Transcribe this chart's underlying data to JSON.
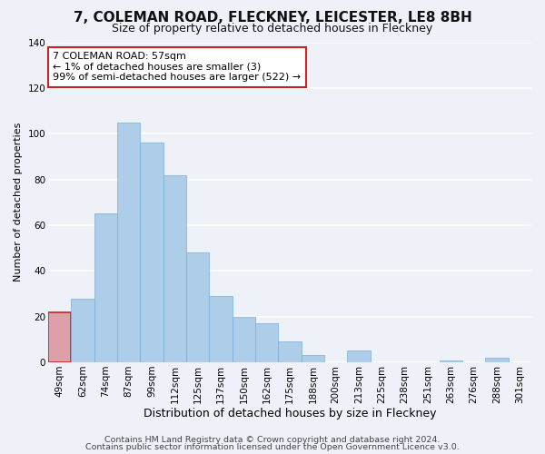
{
  "title": "7, COLEMAN ROAD, FLECKNEY, LEICESTER, LE8 8BH",
  "subtitle": "Size of property relative to detached houses in Fleckney",
  "xlabel": "Distribution of detached houses by size in Fleckney",
  "ylabel": "Number of detached properties",
  "bar_labels": [
    "49sqm",
    "62sqm",
    "74sqm",
    "87sqm",
    "99sqm",
    "112sqm",
    "125sqm",
    "137sqm",
    "150sqm",
    "162sqm",
    "175sqm",
    "188sqm",
    "200sqm",
    "213sqm",
    "225sqm",
    "238sqm",
    "251sqm",
    "263sqm",
    "276sqm",
    "288sqm",
    "301sqm"
  ],
  "bar_values": [
    22,
    28,
    65,
    105,
    96,
    82,
    48,
    29,
    20,
    17,
    9,
    3,
    0,
    5,
    0,
    0,
    0,
    1,
    0,
    2,
    0
  ],
  "highlight_index": 0,
  "bar_color": "#aecde8",
  "bar_edge_color": "#7aadd4",
  "highlight_color": "#dda0a8",
  "highlight_edge_color": "#cc2222",
  "ylim": [
    0,
    140
  ],
  "yticks": [
    0,
    20,
    40,
    60,
    80,
    100,
    120,
    140
  ],
  "annotation_line1": "7 COLEMAN ROAD: 57sqm",
  "annotation_line2": "← 1% of detached houses are smaller (3)",
  "annotation_line3": "99% of semi-detached houses are larger (522) →",
  "footer_line1": "Contains HM Land Registry data © Crown copyright and database right 2024.",
  "footer_line2": "Contains public sector information licensed under the Open Government Licence v3.0.",
  "background_color": "#eef2f8",
  "grid_color": "#ffffff",
  "title_fontsize": 11,
  "subtitle_fontsize": 9,
  "xlabel_fontsize": 9,
  "ylabel_fontsize": 8,
  "tick_fontsize": 7.5,
  "annotation_fontsize": 8,
  "footer_fontsize": 6.8
}
